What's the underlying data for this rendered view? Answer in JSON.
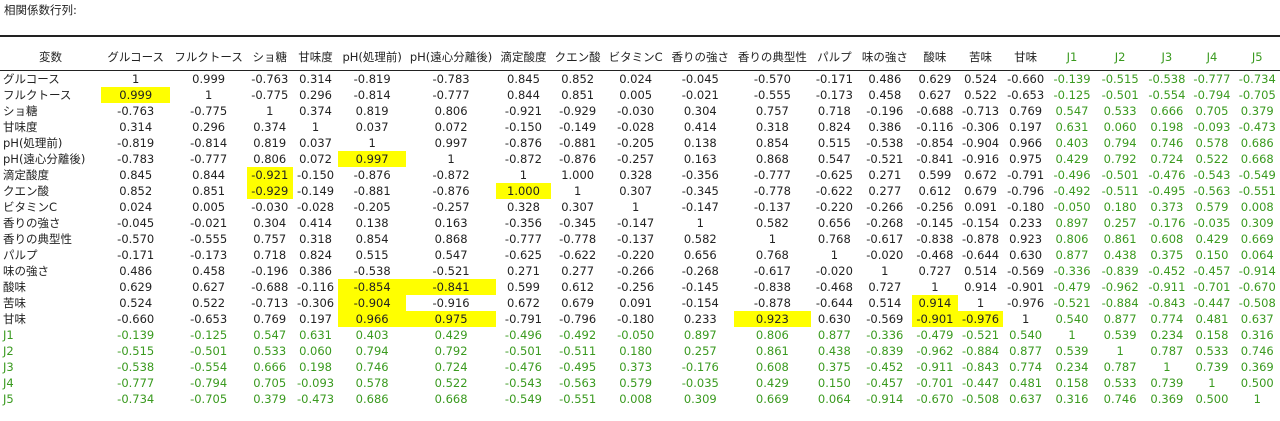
{
  "sheet": {
    "title": "相関係数行列:"
  },
  "colors": {
    "highlight": "#ffff00",
    "green_text": "#3a9a1f"
  },
  "table": {
    "corner_label": "変数",
    "columns": [
      "グルコース",
      "フルクトース",
      "ショ糖",
      "甘味度",
      "pH(処理前)",
      "pH(遠心分離後)",
      "滴定酸度",
      "クエン酸",
      "ビタミンC",
      "香りの強さ",
      "香りの典型性",
      "パルプ",
      "味の強さ",
      "酸味",
      "苦味",
      "甘味",
      "J1",
      "J2",
      "J3",
      "J4",
      "J5"
    ],
    "green_columns": [
      16,
      17,
      18,
      19,
      20
    ],
    "rows": [
      {
        "label": "グルコース",
        "values": [
          "1",
          "0.999",
          "-0.763",
          "0.314",
          "-0.819",
          "-0.783",
          "0.845",
          "0.852",
          "0.024",
          "-0.045",
          "-0.570",
          "-0.171",
          "0.486",
          "0.629",
          "0.524",
          "-0.660",
          "-0.139",
          "-0.515",
          "-0.538",
          "-0.777",
          "-0.734"
        ],
        "highlight": []
      },
      {
        "label": "フルクトース",
        "values": [
          "0.999",
          "1",
          "-0.775",
          "0.296",
          "-0.814",
          "-0.777",
          "0.844",
          "0.851",
          "0.005",
          "-0.021",
          "-0.555",
          "-0.173",
          "0.458",
          "0.627",
          "0.522",
          "-0.653",
          "-0.125",
          "-0.501",
          "-0.554",
          "-0.794",
          "-0.705"
        ],
        "highlight": [
          0
        ]
      },
      {
        "label": "ショ糖",
        "values": [
          "-0.763",
          "-0.775",
          "1",
          "0.374",
          "0.819",
          "0.806",
          "-0.921",
          "-0.929",
          "-0.030",
          "0.304",
          "0.757",
          "0.718",
          "-0.196",
          "-0.688",
          "-0.713",
          "0.769",
          "0.547",
          "0.533",
          "0.666",
          "0.705",
          "0.379"
        ],
        "highlight": []
      },
      {
        "label": "甘味度",
        "values": [
          "0.314",
          "0.296",
          "0.374",
          "1",
          "0.037",
          "0.072",
          "-0.150",
          "-0.149",
          "-0.028",
          "0.414",
          "0.318",
          "0.824",
          "0.386",
          "-0.116",
          "-0.306",
          "0.197",
          "0.631",
          "0.060",
          "0.198",
          "-0.093",
          "-0.473"
        ],
        "highlight": []
      },
      {
        "label": "pH(処理前)",
        "values": [
          "-0.819",
          "-0.814",
          "0.819",
          "0.037",
          "1",
          "0.997",
          "-0.876",
          "-0.881",
          "-0.205",
          "0.138",
          "0.854",
          "0.515",
          "-0.538",
          "-0.854",
          "-0.904",
          "0.966",
          "0.403",
          "0.794",
          "0.746",
          "0.578",
          "0.686"
        ],
        "highlight": []
      },
      {
        "label": "pH(遠心分離後)",
        "values": [
          "-0.783",
          "-0.777",
          "0.806",
          "0.072",
          "0.997",
          "1",
          "-0.872",
          "-0.876",
          "-0.257",
          "0.163",
          "0.868",
          "0.547",
          "-0.521",
          "-0.841",
          "-0.916",
          "0.975",
          "0.429",
          "0.792",
          "0.724",
          "0.522",
          "0.668"
        ],
        "highlight": [
          4
        ]
      },
      {
        "label": "滴定酸度",
        "values": [
          "0.845",
          "0.844",
          "-0.921",
          "-0.150",
          "-0.876",
          "-0.872",
          "1",
          "1.000",
          "0.328",
          "-0.356",
          "-0.777",
          "-0.625",
          "0.271",
          "0.599",
          "0.672",
          "-0.791",
          "-0.496",
          "-0.501",
          "-0.476",
          "-0.543",
          "-0.549"
        ],
        "highlight": [
          2
        ]
      },
      {
        "label": "クエン酸",
        "values": [
          "0.852",
          "0.851",
          "-0.929",
          "-0.149",
          "-0.881",
          "-0.876",
          "1.000",
          "1",
          "0.307",
          "-0.345",
          "-0.778",
          "-0.622",
          "0.277",
          "0.612",
          "0.679",
          "-0.796",
          "-0.492",
          "-0.511",
          "-0.495",
          "-0.563",
          "-0.551"
        ],
        "highlight": [
          2,
          6
        ]
      },
      {
        "label": "ビタミンC",
        "values": [
          "0.024",
          "0.005",
          "-0.030",
          "-0.028",
          "-0.205",
          "-0.257",
          "0.328",
          "0.307",
          "1",
          "-0.147",
          "-0.137",
          "-0.220",
          "-0.266",
          "-0.256",
          "0.091",
          "-0.180",
          "-0.050",
          "0.180",
          "0.373",
          "0.579",
          "0.008"
        ],
        "highlight": []
      },
      {
        "label": "香りの強さ",
        "values": [
          "-0.045",
          "-0.021",
          "0.304",
          "0.414",
          "0.138",
          "0.163",
          "-0.356",
          "-0.345",
          "-0.147",
          "1",
          "0.582",
          "0.656",
          "-0.268",
          "-0.145",
          "-0.154",
          "0.233",
          "0.897",
          "0.257",
          "-0.176",
          "-0.035",
          "0.309"
        ],
        "highlight": []
      },
      {
        "label": "香りの典型性",
        "values": [
          "-0.570",
          "-0.555",
          "0.757",
          "0.318",
          "0.854",
          "0.868",
          "-0.777",
          "-0.778",
          "-0.137",
          "0.582",
          "1",
          "0.768",
          "-0.617",
          "-0.838",
          "-0.878",
          "0.923",
          "0.806",
          "0.861",
          "0.608",
          "0.429",
          "0.669"
        ],
        "highlight": []
      },
      {
        "label": "パルプ",
        "values": [
          "-0.171",
          "-0.173",
          "0.718",
          "0.824",
          "0.515",
          "0.547",
          "-0.625",
          "-0.622",
          "-0.220",
          "0.656",
          "0.768",
          "1",
          "-0.020",
          "-0.468",
          "-0.644",
          "0.630",
          "0.877",
          "0.438",
          "0.375",
          "0.150",
          "0.064"
        ],
        "highlight": []
      },
      {
        "label": "味の強さ",
        "values": [
          "0.486",
          "0.458",
          "-0.196",
          "0.386",
          "-0.538",
          "-0.521",
          "0.271",
          "0.277",
          "-0.266",
          "-0.268",
          "-0.617",
          "-0.020",
          "1",
          "0.727",
          "0.514",
          "-0.569",
          "-0.336",
          "-0.839",
          "-0.452",
          "-0.457",
          "-0.914"
        ],
        "highlight": []
      },
      {
        "label": "酸味",
        "values": [
          "0.629",
          "0.627",
          "-0.688",
          "-0.116",
          "-0.854",
          "-0.841",
          "0.599",
          "0.612",
          "-0.256",
          "-0.145",
          "-0.838",
          "-0.468",
          "0.727",
          "1",
          "0.914",
          "-0.901",
          "-0.479",
          "-0.962",
          "-0.911",
          "-0.701",
          "-0.670"
        ],
        "highlight": [
          4,
          5
        ]
      },
      {
        "label": "苦味",
        "values": [
          "0.524",
          "0.522",
          "-0.713",
          "-0.306",
          "-0.904",
          "-0.916",
          "0.672",
          "0.679",
          "0.091",
          "-0.154",
          "-0.878",
          "-0.644",
          "0.514",
          "0.914",
          "1",
          "-0.976",
          "-0.521",
          "-0.884",
          "-0.843",
          "-0.447",
          "-0.508"
        ],
        "highlight": [
          4,
          13
        ]
      },
      {
        "label": "甘味",
        "values": [
          "-0.660",
          "-0.653",
          "0.769",
          "0.197",
          "0.966",
          "0.975",
          "-0.791",
          "-0.796",
          "-0.180",
          "0.233",
          "0.923",
          "0.630",
          "-0.569",
          "-0.901",
          "-0.976",
          "1",
          "0.540",
          "0.877",
          "0.774",
          "0.481",
          "0.637"
        ],
        "highlight": [
          4,
          5,
          10,
          13,
          14
        ]
      },
      {
        "label": "J1",
        "values": [
          "-0.139",
          "-0.125",
          "0.547",
          "0.631",
          "0.403",
          "0.429",
          "-0.496",
          "-0.492",
          "-0.050",
          "0.897",
          "0.806",
          "0.877",
          "-0.336",
          "-0.479",
          "-0.521",
          "0.540",
          "1",
          "0.539",
          "0.234",
          "0.158",
          "0.316"
        ],
        "highlight": [],
        "green_row": true
      },
      {
        "label": "J2",
        "values": [
          "-0.515",
          "-0.501",
          "0.533",
          "0.060",
          "0.794",
          "0.792",
          "-0.501",
          "-0.511",
          "0.180",
          "0.257",
          "0.861",
          "0.438",
          "-0.839",
          "-0.962",
          "-0.884",
          "0.877",
          "0.539",
          "1",
          "0.787",
          "0.533",
          "0.746"
        ],
        "highlight": [],
        "green_row": true
      },
      {
        "label": "J3",
        "values": [
          "-0.538",
          "-0.554",
          "0.666",
          "0.198",
          "0.746",
          "0.724",
          "-0.476",
          "-0.495",
          "0.373",
          "-0.176",
          "0.608",
          "0.375",
          "-0.452",
          "-0.911",
          "-0.843",
          "0.774",
          "0.234",
          "0.787",
          "1",
          "0.739",
          "0.369"
        ],
        "highlight": [],
        "green_row": true
      },
      {
        "label": "J4",
        "values": [
          "-0.777",
          "-0.794",
          "0.705",
          "-0.093",
          "0.578",
          "0.522",
          "-0.543",
          "-0.563",
          "0.579",
          "-0.035",
          "0.429",
          "0.150",
          "-0.457",
          "-0.701",
          "-0.447",
          "0.481",
          "0.158",
          "0.533",
          "0.739",
          "1",
          "0.500"
        ],
        "highlight": [],
        "green_row": true
      },
      {
        "label": "J5",
        "values": [
          "-0.734",
          "-0.705",
          "0.379",
          "-0.473",
          "0.686",
          "0.668",
          "-0.549",
          "-0.551",
          "0.008",
          "0.309",
          "0.669",
          "0.064",
          "-0.914",
          "-0.670",
          "-0.508",
          "0.637",
          "0.316",
          "0.746",
          "0.369",
          "0.500",
          "1"
        ],
        "highlight": [],
        "green_row": true
      }
    ]
  }
}
